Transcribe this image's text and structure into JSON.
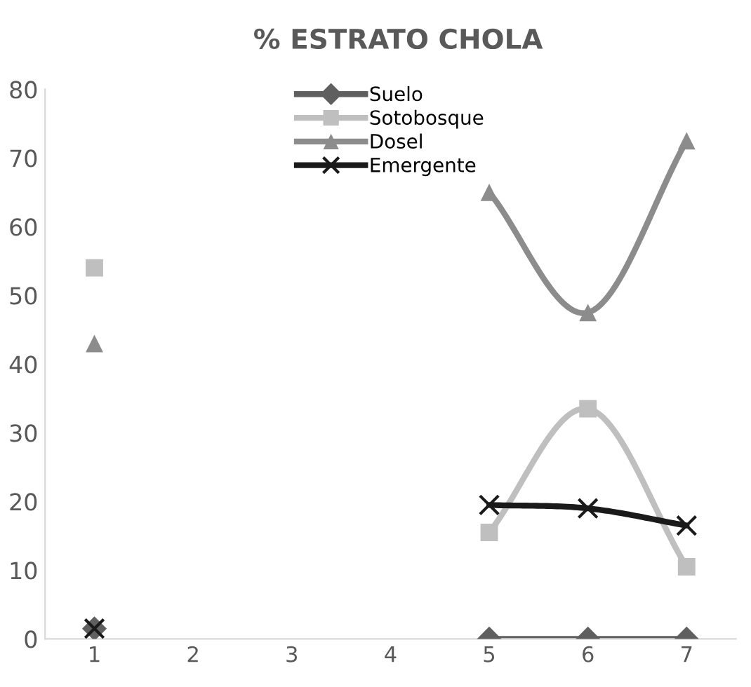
{
  "chart_data": {
    "type": "line",
    "title": "% ESTRATO CHOLA",
    "categories": [
      "1",
      "2",
      "3",
      "4",
      "5",
      "6",
      "7"
    ],
    "series": [
      {
        "name": "Suelo",
        "color": "#5f5f5f",
        "marker": "diamond",
        "values": [
          1.5,
          null,
          null,
          null,
          0,
          0,
          0
        ]
      },
      {
        "name": "Sotobosque",
        "color": "#bfbfbf",
        "marker": "square",
        "values": [
          54,
          null,
          null,
          null,
          15.5,
          33.5,
          10.5
        ]
      },
      {
        "name": "Dosel",
        "color": "#8c8c8c",
        "marker": "triangle",
        "values": [
          43,
          null,
          null,
          null,
          65,
          47.5,
          72.5
        ]
      },
      {
        "name": "Emergente",
        "color": "#1a1a1a",
        "marker": "cross",
        "values": [
          1.5,
          null,
          null,
          null,
          19.5,
          19,
          16.5
        ]
      }
    ],
    "ylim": [
      0,
      80
    ],
    "yticks": [
      0,
      10,
      20,
      30,
      40,
      50,
      60,
      70,
      80
    ],
    "grid": false,
    "legend": "top",
    "line_style": "solid"
  }
}
